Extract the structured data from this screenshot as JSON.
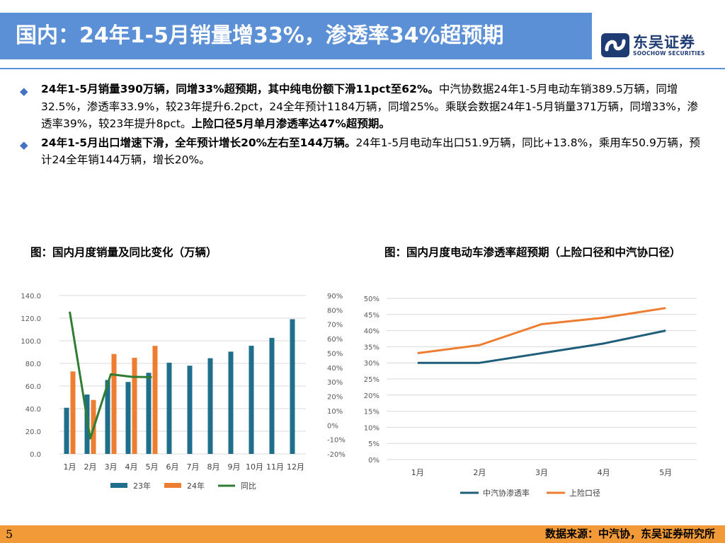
{
  "header": {
    "title": "国内：24年1-5月销量增33%，渗透率34%超预期",
    "logo_cn": "东吴证券",
    "logo_en": "SOOCHOW SECURITIES"
  },
  "bullets": [
    {
      "bold1": "24年1-5月销量390万辆，同增33%超预期，其中纯电份额下滑11pct至62%。",
      "text1": "中汽协数据24年1-5月电动车销389.5万辆，同增32.5%，渗透率33.9%，较23年提升6.2pct，24全年预计1184万辆，同增25%。乘联会数据24年1-5月销量371万辆，同增33%，渗透率39%，较23年提升8pct。",
      "bold2": "上险口径5月单月渗透率达47%超预期。"
    },
    {
      "bold1": "24年1-5月出口增速下滑，全年预计增长20%左右至144万辆。",
      "text1": "24年1-5月电动车出口51.9万辆，同比+13.8%，乘用车50.9万辆，预计24全年销144万辆，增长20%。",
      "bold2": ""
    }
  ],
  "captions": {
    "chart1": "图：国内月度销量及同比变化（万辆）",
    "chart2": "图：国内月度电动车渗透率超预期（上险口径和中汽协口径）"
  },
  "chart_data": [
    {
      "type": "bar",
      "title": "",
      "categories": [
        "1月",
        "2月",
        "3月",
        "4月",
        "5月",
        "6月",
        "7月",
        "8月",
        "9月",
        "10月",
        "11月",
        "12月"
      ],
      "series": [
        {
          "name": "23年",
          "kind": "bar",
          "axis": "left",
          "color": "#1f6e8c",
          "values": [
            40.8,
            52.5,
            65.3,
            63.6,
            71.7,
            80.6,
            78.0,
            84.6,
            90.4,
            95.6,
            102.6,
            119.1
          ]
        },
        {
          "name": "24年",
          "kind": "bar",
          "axis": "left",
          "color": "#ed7d31",
          "values": [
            72.9,
            47.7,
            88.3,
            85.0,
            95.5,
            null,
            null,
            null,
            null,
            null,
            null,
            null
          ]
        },
        {
          "name": "同比",
          "kind": "line",
          "axis": "right",
          "color": "#2e7d32",
          "values": [
            78.8,
            -9.2,
            35.3,
            33.6,
            33.3,
            null,
            null,
            null,
            null,
            null,
            null,
            null
          ]
        }
      ],
      "left_axis": {
        "ticks": [
          "0.0",
          "20.0",
          "40.0",
          "60.0",
          "80.0",
          "100.0",
          "120.0",
          "140.0"
        ],
        "min": 0,
        "max": 140
      },
      "right_axis": {
        "ticks": [
          "-20%",
          "-10%",
          "0%",
          "10%",
          "20%",
          "30%",
          "40%",
          "50%",
          "60%",
          "70%",
          "80%",
          "90%"
        ],
        "min": -20,
        "max": 90
      },
      "legend": "bottom",
      "grid": true
    },
    {
      "type": "line",
      "title": "",
      "categories": [
        "1月",
        "2月",
        "3月",
        "4月",
        "5月"
      ],
      "series": [
        {
          "name": "中汽协渗透率",
          "color": "#1f5e7a",
          "values": [
            30,
            30,
            33,
            36,
            40
          ]
        },
        {
          "name": "上险口径",
          "color": "#ed7d31",
          "values": [
            33,
            35.5,
            42,
            44,
            47
          ]
        }
      ],
      "y_axis": {
        "ticks": [
          "0%",
          "5%",
          "10%",
          "15%",
          "20%",
          "25%",
          "30%",
          "35%",
          "40%",
          "45%",
          "50%"
        ],
        "min": 0,
        "max": 50
      },
      "legend": "bottom",
      "grid": true
    }
  ],
  "footer": {
    "page": "5",
    "source": "数据来源：中汽协，东吴证券研究所"
  },
  "colors": {
    "title_bar": "#5b8fd6",
    "footer": "#f29a38",
    "brand": "#1f3b73"
  }
}
